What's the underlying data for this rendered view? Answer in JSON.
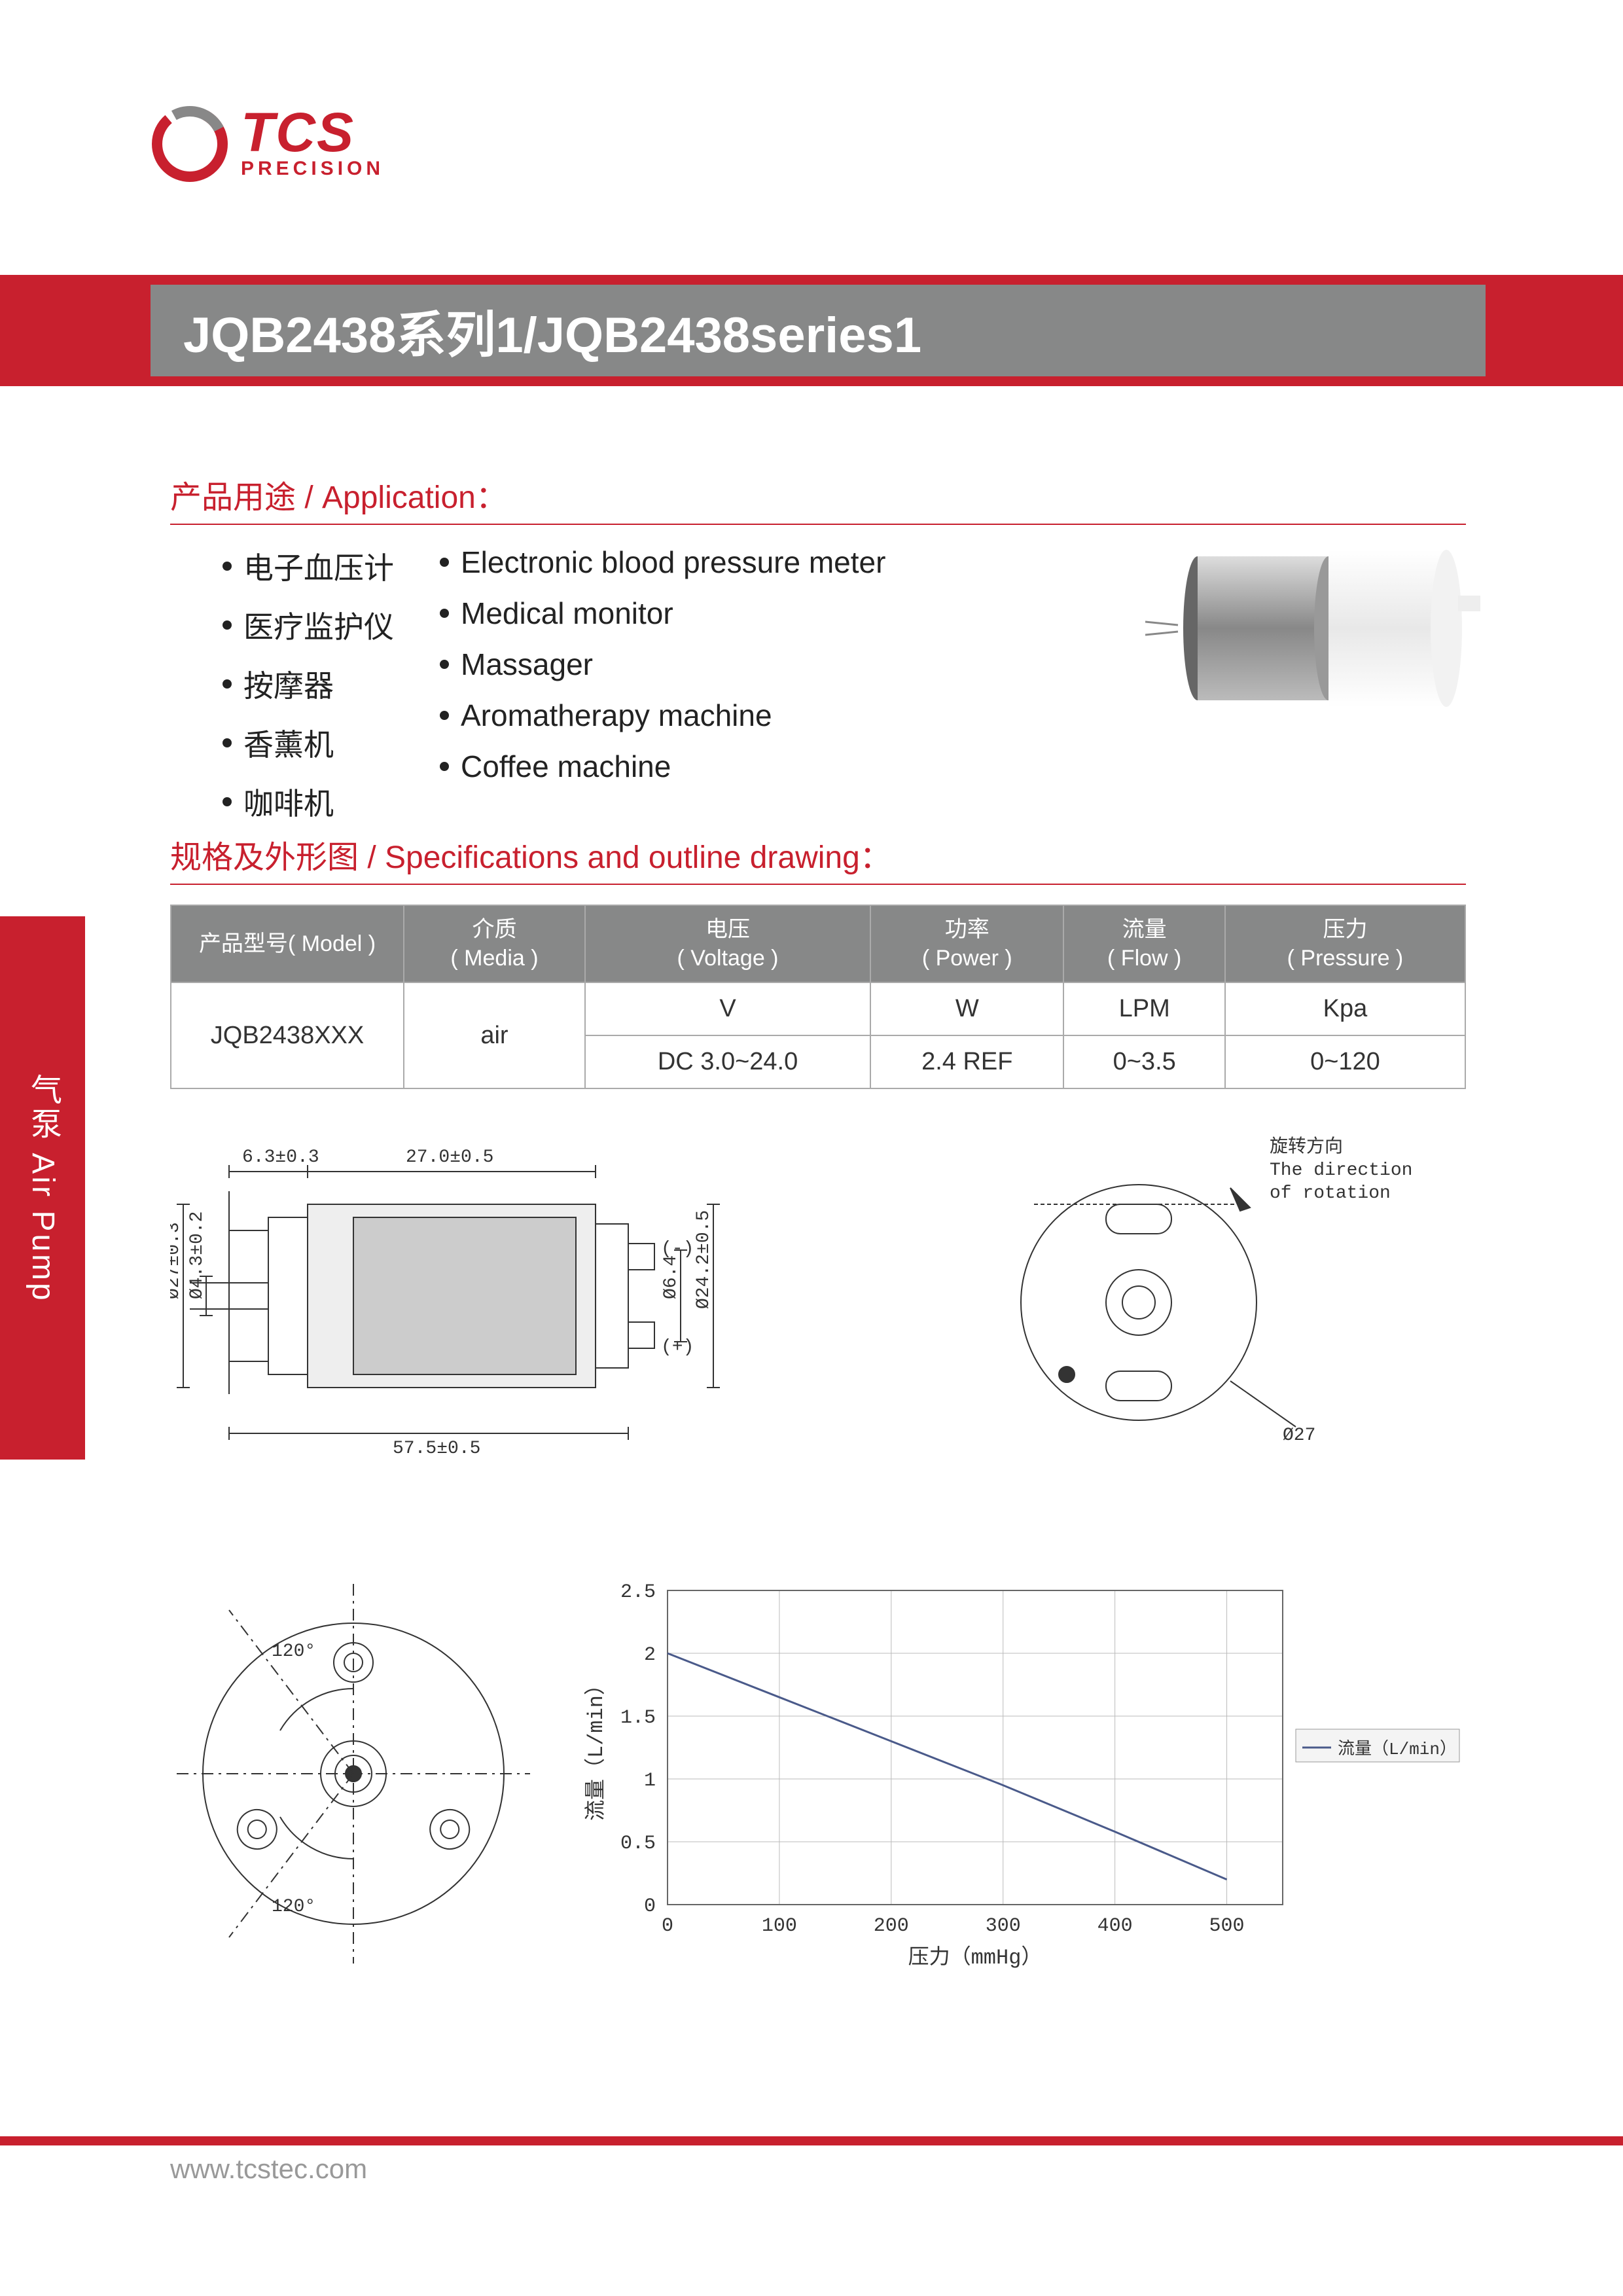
{
  "brand": {
    "name": "TCS",
    "sub": "PRECISION",
    "color": "#c8202e"
  },
  "title": "JQB2438系列1/JQB2438series1",
  "sections": {
    "application": "产品用途 / Application：",
    "specifications": "规格及外形图 / Specifications and outline drawing："
  },
  "applications_cn": [
    "电子血压计",
    "医疗监护仪",
    "按摩器",
    "香薰机",
    "咖啡机"
  ],
  "applications_en": [
    "Electronic blood pressure meter",
    "Medical monitor",
    "Massager",
    "Aromatherapy machine",
    "Coffee machine"
  ],
  "side_tab": "气泵 Air Pump",
  "spec_table": {
    "headers": [
      {
        "cn": "产品型号",
        "en": "( Model )"
      },
      {
        "cn": "介质",
        "en": "( Media )"
      },
      {
        "cn": "电压",
        "en": "( Voltage )"
      },
      {
        "cn": "功率",
        "en": "( Power )"
      },
      {
        "cn": "流量",
        "en": "( Flow )"
      },
      {
        "cn": "压力",
        "en": "( Pressure )"
      }
    ],
    "model": "JQB2438XXX",
    "media": "air",
    "units": [
      "V",
      "W",
      "LPM",
      "Kpa"
    ],
    "values": [
      "DC 3.0~24.0",
      "2.4 REF",
      "0~3.5",
      "0~120"
    ]
  },
  "drawing": {
    "dims": {
      "d1": "6.3±0.3",
      "d2": "27.0±0.5",
      "d3": "Ø27±0.3",
      "d4": "Ø4.3±0.2",
      "d5": "57.5±0.5",
      "d6": "Ø6.4",
      "d7": "Ø24.2±0.5",
      "d8": "Ø27",
      "rotation_cn": "旋转方向",
      "rotation_en1": "The direction",
      "rotation_en2": "of rotation",
      "plus": "(+)",
      "minus": "(-)"
    },
    "circle": {
      "angle1": "120°",
      "angle2": "120°"
    }
  },
  "chart": {
    "type": "line",
    "x_label": "压力（mmHg）",
    "y_label": "流量（L/min）",
    "legend": "流量（L/min）",
    "x_ticks": [
      0,
      100,
      200,
      300,
      400,
      500
    ],
    "y_ticks": [
      0,
      0.5,
      1,
      1.5,
      2,
      2.5
    ],
    "xlim": [
      0,
      550
    ],
    "ylim": [
      0,
      2.5
    ],
    "line_color": "#4a5a8a",
    "grid_color": "#bbbbbb",
    "background": "#ffffff",
    "data": [
      {
        "x": 0,
        "y": 2.0
      },
      {
        "x": 100,
        "y": 1.65
      },
      {
        "x": 200,
        "y": 1.3
      },
      {
        "x": 300,
        "y": 0.95
      },
      {
        "x": 400,
        "y": 0.58
      },
      {
        "x": 500,
        "y": 0.2
      }
    ]
  },
  "footer_url": "www.tcstec.com"
}
